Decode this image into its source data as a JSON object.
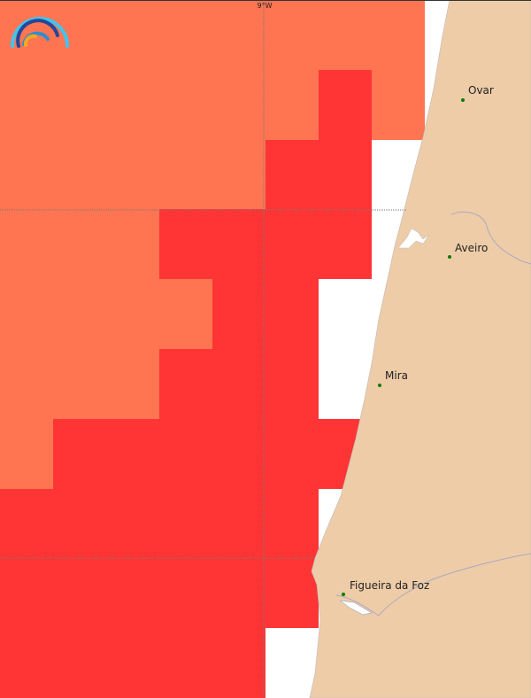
{
  "map": {
    "grid_label": "9°W",
    "colors": {
      "high": "#FF7552",
      "very_high": "#FF3535",
      "land": "#EECCA8",
      "no_data": "#FFFFFF"
    },
    "cells": [
      [
        "high",
        "high",
        "high",
        "high",
        "high",
        "high",
        "high",
        "high"
      ],
      [
        "high",
        "high",
        "high",
        "high",
        "high",
        "high",
        "very_high",
        "high"
      ],
      [
        "high",
        "high",
        "high",
        "high",
        "high",
        "very_high",
        "very_high",
        "none"
      ],
      [
        "high",
        "high",
        "high",
        "very_high",
        "very_high",
        "very_high",
        "very_high",
        "none"
      ],
      [
        "high",
        "high",
        "high",
        "high",
        "very_high",
        "very_high",
        "none",
        "none"
      ],
      [
        "high",
        "high",
        "high",
        "very_high",
        "very_high",
        "very_high",
        "none",
        "none"
      ],
      [
        "high",
        "very_high",
        "very_high",
        "very_high",
        "very_high",
        "very_high",
        "very_high",
        "none"
      ],
      [
        "very_high",
        "very_high",
        "very_high",
        "very_high",
        "very_high",
        "very_high",
        "none",
        "none"
      ],
      [
        "very_high",
        "very_high",
        "very_high",
        "very_high",
        "very_high",
        "very_high",
        "none",
        "none"
      ],
      [
        "very_high",
        "very_high",
        "very_high",
        "very_high",
        "very_high",
        "none",
        "none",
        "none"
      ]
    ],
    "cities": [
      {
        "name": "Ovar"
      },
      {
        "name": "Aveiro"
      },
      {
        "name": "Mira"
      },
      {
        "name": "Figueira da Foz"
      }
    ]
  }
}
